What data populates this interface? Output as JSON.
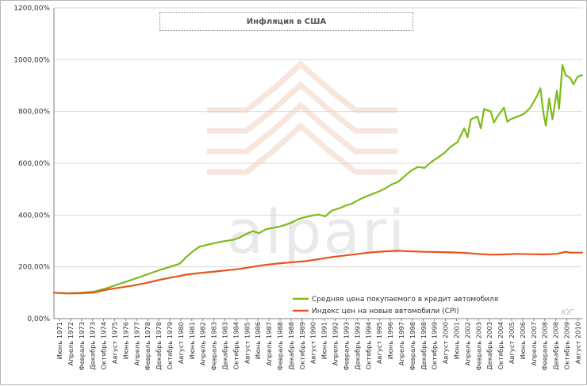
{
  "chart_data": {
    "type": "line",
    "title": "Инфляция в США",
    "ylim": [
      0,
      1200
    ],
    "yticks": [
      "0,00%",
      "200,00%",
      "400,00%",
      "600,00%",
      "800,00%",
      "1000,00%",
      "1200,00%"
    ],
    "ytick_values": [
      0,
      200,
      400,
      600,
      800,
      1000,
      1200
    ],
    "grid": true,
    "legend_position": "bottom-right",
    "x_tick_labels": [
      "Июнь 1971",
      "Апрель 1972",
      "Февраль 1973",
      "Декабрь 1973",
      "Октябрь 1974",
      "Август 1975",
      "Июнь 1976",
      "Апрель 1977",
      "Февраль 1978",
      "Декабрь 1978",
      "Октябрь 1979",
      "Август 1980",
      "Июнь 1981",
      "Апрель 1982",
      "Февраль 1983",
      "Декабрь 1983",
      "Октябрь 1984",
      "Август 1985",
      "Июнь 1986",
      "Апрель 1987",
      "Февраль 1988",
      "Декабрь 1988",
      "Октябрь 1989",
      "Август 1990",
      "Июнь 1991",
      "Апрель 1992",
      "Февраль 1993",
      "Декабрь 1993",
      "Октябрь 1994",
      "Август 1995",
      "Июнь 1996",
      "Апрель 1997",
      "Февраль 1998",
      "Декабрь 1998",
      "Октябрь 1999",
      "Август 2000",
      "Июнь 2001",
      "Апрель 2002",
      "Февраль 2003",
      "Декабрь 2003",
      "Октябрь 2004",
      "Август 2005",
      "Июнь 2006",
      "Апрель 2007",
      "Февраль 2008",
      "Декабрь 2008",
      "Октябрь 2009",
      "Август 2010"
    ],
    "x_start": "Январь 1971",
    "x_end": "Декабрь 2010",
    "series": [
      {
        "name": "Средняя цена покупаемого в кредит автомобиля",
        "color": "#7dbb1c",
        "points": [
          [
            "1971-01",
            100
          ],
          [
            "1972-01",
            98
          ],
          [
            "1973-01",
            100
          ],
          [
            "1974-01",
            104
          ],
          [
            "1975-01",
            118
          ],
          [
            "1976-01",
            135
          ],
          [
            "1977-01",
            152
          ],
          [
            "1978-01",
            170
          ],
          [
            "1979-01",
            188
          ],
          [
            "1980-01",
            204
          ],
          [
            "1980-07",
            212
          ],
          [
            "1981-01",
            238
          ],
          [
            "1981-07",
            260
          ],
          [
            "1982-01",
            278
          ],
          [
            "1982-07",
            284
          ],
          [
            "1983-01",
            290
          ],
          [
            "1983-07",
            296
          ],
          [
            "1984-01",
            300
          ],
          [
            "1984-07",
            304
          ],
          [
            "1985-01",
            312
          ],
          [
            "1985-07",
            326
          ],
          [
            "1986-01",
            338
          ],
          [
            "1986-07",
            330
          ],
          [
            "1987-01",
            345
          ],
          [
            "1987-07",
            350
          ],
          [
            "1988-01",
            355
          ],
          [
            "1988-07",
            362
          ],
          [
            "1989-01",
            372
          ],
          [
            "1989-07",
            385
          ],
          [
            "1990-01",
            392
          ],
          [
            "1990-07",
            398
          ],
          [
            "1991-01",
            402
          ],
          [
            "1991-07",
            395
          ],
          [
            "1992-01",
            418
          ],
          [
            "1992-07",
            425
          ],
          [
            "1993-01",
            436
          ],
          [
            "1993-07",
            444
          ],
          [
            "1994-01",
            458
          ],
          [
            "1994-07",
            470
          ],
          [
            "1995-01",
            480
          ],
          [
            "1995-07",
            490
          ],
          [
            "1996-01",
            502
          ],
          [
            "1996-07",
            518
          ],
          [
            "1997-01",
            528
          ],
          [
            "1997-07",
            550
          ],
          [
            "1998-01",
            572
          ],
          [
            "1998-07",
            586
          ],
          [
            "1999-01",
            582
          ],
          [
            "1999-07",
            605
          ],
          [
            "2000-01",
            622
          ],
          [
            "2000-07",
            640
          ],
          [
            "2001-01",
            665
          ],
          [
            "2001-07",
            682
          ],
          [
            "2002-01",
            735
          ],
          [
            "2002-04",
            700
          ],
          [
            "2002-07",
            770
          ],
          [
            "2003-01",
            780
          ],
          [
            "2003-04",
            735
          ],
          [
            "2003-07",
            810
          ],
          [
            "2004-01",
            800
          ],
          [
            "2004-04",
            758
          ],
          [
            "2004-07",
            780
          ],
          [
            "2005-01",
            815
          ],
          [
            "2005-04",
            760
          ],
          [
            "2005-07",
            770
          ],
          [
            "2006-01",
            780
          ],
          [
            "2006-07",
            790
          ],
          [
            "2007-01",
            815
          ],
          [
            "2007-07",
            860
          ],
          [
            "2007-10",
            890
          ],
          [
            "2008-01",
            790
          ],
          [
            "2008-03",
            745
          ],
          [
            "2008-06",
            850
          ],
          [
            "2008-09",
            770
          ],
          [
            "2009-01",
            880
          ],
          [
            "2009-03",
            810
          ],
          [
            "2009-06",
            980
          ],
          [
            "2009-09",
            940
          ],
          [
            "2010-01",
            930
          ],
          [
            "2010-04",
            905
          ],
          [
            "2010-08",
            935
          ],
          [
            "2010-12",
            940
          ]
        ]
      },
      {
        "name": "Индекс цен на новые автомобили (CPI)",
        "color": "#e8541e",
        "points": [
          [
            "1971-01",
            100
          ],
          [
            "1972-01",
            97
          ],
          [
            "1973-01",
            98
          ],
          [
            "1974-01",
            100
          ],
          [
            "1975-01",
            112
          ],
          [
            "1976-01",
            120
          ],
          [
            "1977-01",
            128
          ],
          [
            "1978-01",
            138
          ],
          [
            "1979-01",
            150
          ],
          [
            "1980-01",
            160
          ],
          [
            "1981-01",
            170
          ],
          [
            "1982-01",
            176
          ],
          [
            "1983-01",
            181
          ],
          [
            "1984-01",
            186
          ],
          [
            "1985-01",
            192
          ],
          [
            "1986-01",
            200
          ],
          [
            "1987-01",
            208
          ],
          [
            "1988-01",
            213
          ],
          [
            "1989-01",
            218
          ],
          [
            "1990-01",
            222
          ],
          [
            "1991-01",
            230
          ],
          [
            "1992-01",
            238
          ],
          [
            "1993-01",
            244
          ],
          [
            "1994-01",
            250
          ],
          [
            "1995-01",
            256
          ],
          [
            "1996-01",
            260
          ],
          [
            "1997-01",
            262
          ],
          [
            "1998-01",
            260
          ],
          [
            "1999-01",
            258
          ],
          [
            "2000-01",
            257
          ],
          [
            "2001-01",
            256
          ],
          [
            "2002-01",
            254
          ],
          [
            "2003-01",
            250
          ],
          [
            "2004-01",
            247
          ],
          [
            "2005-01",
            248
          ],
          [
            "2006-01",
            250
          ],
          [
            "2007-01",
            249
          ],
          [
            "2008-01",
            248
          ],
          [
            "2009-01",
            250
          ],
          [
            "2009-09",
            258
          ],
          [
            "2010-01",
            255
          ],
          [
            "2010-12",
            255
          ]
        ]
      }
    ]
  },
  "watermark": {
    "text": "alpari",
    "mark_color": "#f6e6dc"
  },
  "signature": {
    "text": "ЮГ"
  },
  "colors": {
    "grid": "#d9d9d9",
    "axis": "#808080",
    "frame": "#b5b5b5"
  }
}
